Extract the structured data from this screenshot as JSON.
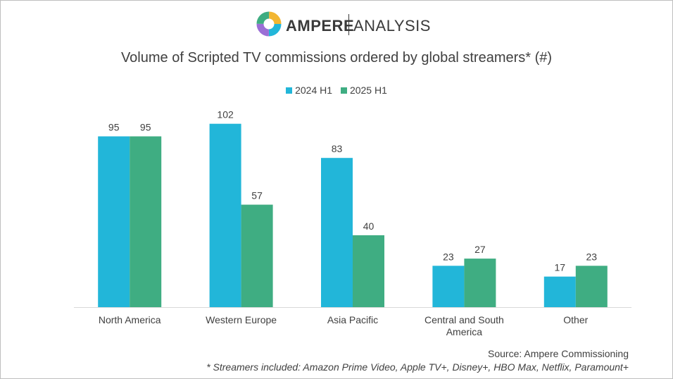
{
  "brand": {
    "name_part1": "AMPERE",
    "name_part2": "ANALYSIS"
  },
  "colors": {
    "series1": "#22b6d9",
    "series2": "#3fad82",
    "axis": "#d9d9d9",
    "text": "#404040"
  },
  "footer": {
    "source": "Source: Ampere Commissioning",
    "note": "* Streamers included: Amazon Prime Video, Apple TV+, Disney+, HBO Max, Netflix, Paramount+"
  },
  "chart_data": {
    "type": "bar",
    "title": "Volume of Scripted TV commissions ordered by global streamers* (#)",
    "categories": [
      [
        "North America"
      ],
      [
        "Western Europe"
      ],
      [
        "Asia Pacific"
      ],
      [
        "Central and South",
        "America"
      ],
      [
        "Other"
      ]
    ],
    "series": [
      {
        "name": "2024 H1",
        "values": [
          95,
          102,
          83,
          23,
          17
        ]
      },
      {
        "name": "2025 H1",
        "values": [
          95,
          57,
          40,
          27,
          23
        ]
      }
    ],
    "ylim": [
      0,
      110
    ],
    "grid": false,
    "legend": "top-center",
    "data_labels": true
  }
}
